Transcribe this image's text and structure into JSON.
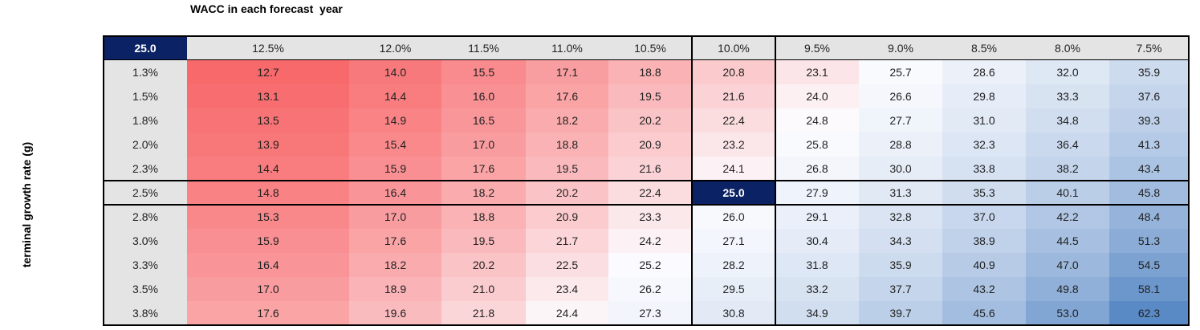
{
  "title": "WACC in each forecast  year",
  "row_label": "terminal growth rate (g)",
  "table": {
    "corner": "25.0",
    "columns": [
      "12.5%",
      "12.0%",
      "11.5%",
      "11.0%",
      "10.5%",
      "10.0%",
      "9.5%",
      "9.0%",
      "8.5%",
      "8.0%",
      "7.5%"
    ],
    "row_headers": [
      "1.3%",
      "1.5%",
      "1.8%",
      "2.0%",
      "2.3%",
      "2.5%",
      "2.8%",
      "3.0%",
      "3.3%",
      "3.5%",
      "3.8%"
    ],
    "rows": [
      [
        "12.7",
        "14.0",
        "15.5",
        "17.1",
        "18.8",
        "20.8",
        "23.1",
        "25.7",
        "28.6",
        "32.0",
        "35.9"
      ],
      [
        "13.1",
        "14.4",
        "16.0",
        "17.6",
        "19.5",
        "21.6",
        "24.0",
        "26.6",
        "29.8",
        "33.3",
        "37.6"
      ],
      [
        "13.5",
        "14.9",
        "16.5",
        "18.2",
        "20.2",
        "22.4",
        "24.8",
        "27.7",
        "31.0",
        "34.8",
        "39.3"
      ],
      [
        "13.9",
        "15.4",
        "17.0",
        "18.8",
        "20.9",
        "23.2",
        "25.8",
        "28.8",
        "32.3",
        "36.4",
        "41.3"
      ],
      [
        "14.4",
        "15.9",
        "17.6",
        "19.5",
        "21.6",
        "24.1",
        "26.8",
        "30.0",
        "33.8",
        "38.2",
        "43.4"
      ],
      [
        "14.8",
        "16.4",
        "18.2",
        "20.2",
        "22.4",
        "25.0",
        "27.9",
        "31.3",
        "35.3",
        "40.1",
        "45.8"
      ],
      [
        "15.3",
        "17.0",
        "18.8",
        "20.9",
        "23.3",
        "26.0",
        "29.1",
        "32.8",
        "37.0",
        "42.2",
        "48.4"
      ],
      [
        "15.9",
        "17.6",
        "19.5",
        "21.7",
        "24.2",
        "27.1",
        "30.4",
        "34.3",
        "38.9",
        "44.5",
        "51.3"
      ],
      [
        "16.4",
        "18.2",
        "20.2",
        "22.5",
        "25.2",
        "28.2",
        "31.8",
        "35.9",
        "40.9",
        "47.0",
        "54.5"
      ],
      [
        "17.0",
        "18.9",
        "21.0",
        "23.4",
        "26.2",
        "29.5",
        "33.2",
        "37.7",
        "43.2",
        "49.8",
        "58.1"
      ],
      [
        "17.6",
        "19.6",
        "21.8",
        "24.4",
        "27.3",
        "30.8",
        "34.9",
        "39.7",
        "45.6",
        "53.0",
        "62.3"
      ]
    ]
  }
}
